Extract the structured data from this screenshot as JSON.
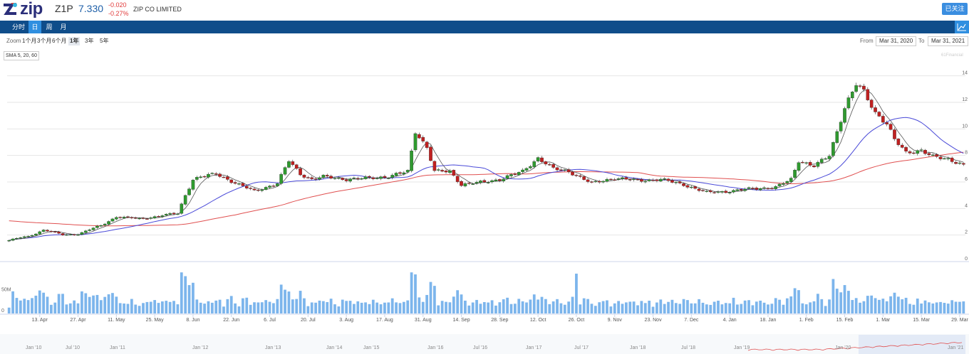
{
  "header": {
    "logo_text": "zip",
    "ticker": "Z1P",
    "price": "7.330",
    "change": "-0.020",
    "change_pct": "-0.27%",
    "company": "ZIP CO LIMITED",
    "follow_label": "已关注"
  },
  "nav": {
    "tabs": [
      {
        "label": "分时"
      },
      {
        "label": "日"
      },
      {
        "label": "周"
      },
      {
        "label": "月"
      }
    ],
    "active_tab": "日"
  },
  "zoom": {
    "label": "Zoom",
    "options": [
      "1个月",
      "3个月",
      "6个月",
      "1年",
      "3年",
      "5年"
    ],
    "active": "1年",
    "from_label": "From",
    "from_value": "Mar 31, 2020",
    "to_label": "To",
    "to_value": "Mar 31, 2021"
  },
  "indicator": "SMA 5, 20, 60",
  "credit": "61Financial",
  "colors": {
    "up": "#2f9a2f",
    "down": "#c02020",
    "sma5": "#555555",
    "sma20": "#4a4ad8",
    "sma60": "#e05050",
    "volume": "#7cb5ec",
    "nav_bar": "#0f4d8a",
    "accent": "#2f8fe0"
  },
  "chart_data": {
    "type": "candlestick",
    "yticks": [
      0,
      2,
      4,
      6,
      8,
      10,
      12,
      14
    ],
    "ylim": [
      0,
      15
    ],
    "volume_ticks": [
      "0",
      "50M"
    ],
    "volume_lim": [
      0,
      100
    ],
    "xticks": [
      "13. Apr",
      "27. Apr",
      "11. May",
      "25. May",
      "8. Jun",
      "22. Jun",
      "6. Jul",
      "20. Jul",
      "3. Aug",
      "17. Aug",
      "31. Aug",
      "14. Sep",
      "28. Sep",
      "12. Oct",
      "26. Oct",
      "9. Nov",
      "23. Nov",
      "7. Dec",
      "4. Jan",
      "18. Jan",
      "1. Feb",
      "15. Feb",
      "1. Mar",
      "15. Mar",
      "29. Mar"
    ],
    "xtick_index": [
      8,
      18,
      28,
      38,
      48,
      58,
      68,
      78,
      88,
      98,
      108,
      118,
      128,
      138,
      148,
      158,
      168,
      178,
      188,
      198,
      208,
      218,
      228,
      238,
      248
    ],
    "close_anchors": [
      [
        0,
        1.6
      ],
      [
        5,
        1.9
      ],
      [
        9,
        2.4
      ],
      [
        14,
        2.0
      ],
      [
        18,
        2.1
      ],
      [
        24,
        2.7
      ],
      [
        28,
        3.4
      ],
      [
        34,
        3.2
      ],
      [
        40,
        3.5
      ],
      [
        44,
        3.6
      ],
      [
        46,
        5.0
      ],
      [
        48,
        6.2
      ],
      [
        50,
        6.4
      ],
      [
        54,
        6.6
      ],
      [
        60,
        5.8
      ],
      [
        64,
        5.3
      ],
      [
        70,
        5.9
      ],
      [
        73,
        7.6
      ],
      [
        76,
        6.6
      ],
      [
        79,
        6.2
      ],
      [
        82,
        6.4
      ],
      [
        88,
        6.2
      ],
      [
        94,
        6.3
      ],
      [
        99,
        6.4
      ],
      [
        104,
        6.8
      ],
      [
        106,
        9.8
      ],
      [
        109,
        8.6
      ],
      [
        111,
        6.8
      ],
      [
        115,
        6.8
      ],
      [
        118,
        5.8
      ],
      [
        124,
        6.0
      ],
      [
        128,
        6.2
      ],
      [
        134,
        6.8
      ],
      [
        138,
        7.8
      ],
      [
        142,
        7.0
      ],
      [
        146,
        6.8
      ],
      [
        152,
        5.9
      ],
      [
        158,
        6.3
      ],
      [
        164,
        6.1
      ],
      [
        170,
        6.2
      ],
      [
        176,
        5.8
      ],
      [
        182,
        5.2
      ],
      [
        188,
        5.3
      ],
      [
        194,
        5.5
      ],
      [
        200,
        5.6
      ],
      [
        204,
        6.2
      ],
      [
        206,
        7.6
      ],
      [
        210,
        7.2
      ],
      [
        214,
        8.0
      ],
      [
        218,
        11.6
      ],
      [
        221,
        13.4
      ],
      [
        223,
        12.8
      ],
      [
        226,
        11.2
      ],
      [
        229,
        10.4
      ],
      [
        231,
        9.2
      ],
      [
        234,
        8.2
      ],
      [
        238,
        8.4
      ],
      [
        241,
        7.9
      ],
      [
        245,
        7.7
      ],
      [
        249,
        7.33
      ]
    ],
    "x_span": [
      0,
      249
    ],
    "nav_labels": [
      "Jan '10",
      "Jul '10",
      "Jan '11",
      "Jan '12",
      "Jan '13",
      "Jan '14",
      "Jan '15",
      "Jan '16",
      "Jul '16",
      "Jan '17",
      "Jul '17",
      "Jan '18",
      "Jul '18",
      "Jan '19",
      "Jan '20",
      "Jan '21"
    ]
  }
}
